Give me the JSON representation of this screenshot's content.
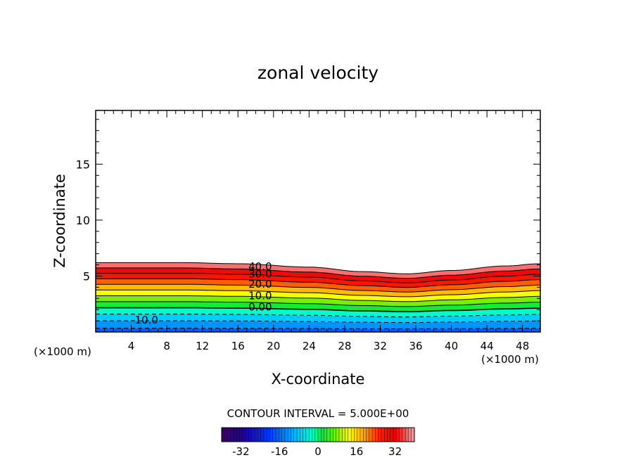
{
  "chart_data": {
    "type": "contour",
    "title": "zonal velocity",
    "xlabel": "X-coordinate",
    "ylabel": "Z-coordinate",
    "x_unit_label": "(×1000 m)",
    "x_ticks": [
      4,
      8,
      12,
      16,
      20,
      24,
      28,
      32,
      36,
      40,
      44,
      48
    ],
    "y_ticks": [
      5,
      10,
      15
    ],
    "xlim": [
      0,
      50
    ],
    "ylim": [
      0,
      19.8
    ],
    "contour_interval_text": "CONTOUR INTERVAL = 5.000E+00",
    "contour_labels": [
      "40.0",
      "30.0",
      "20.0",
      "10.0",
      "0.00",
      "-10.0"
    ],
    "contour_levels": [
      -15,
      -10,
      -5,
      0,
      5,
      10,
      15,
      20,
      25,
      30,
      35,
      40
    ],
    "colorbar_ticks": [
      -32,
      -16,
      0,
      16,
      32
    ],
    "colorbar_range": [
      -40,
      40
    ],
    "field": {
      "top_of_field_x": [
        0,
        10,
        16,
        24,
        30,
        35,
        40,
        46,
        50
      ],
      "top_of_field_z": [
        6.2,
        6.2,
        6.1,
        5.8,
        5.4,
        5.2,
        5.5,
        5.9,
        6.1
      ]
    }
  }
}
